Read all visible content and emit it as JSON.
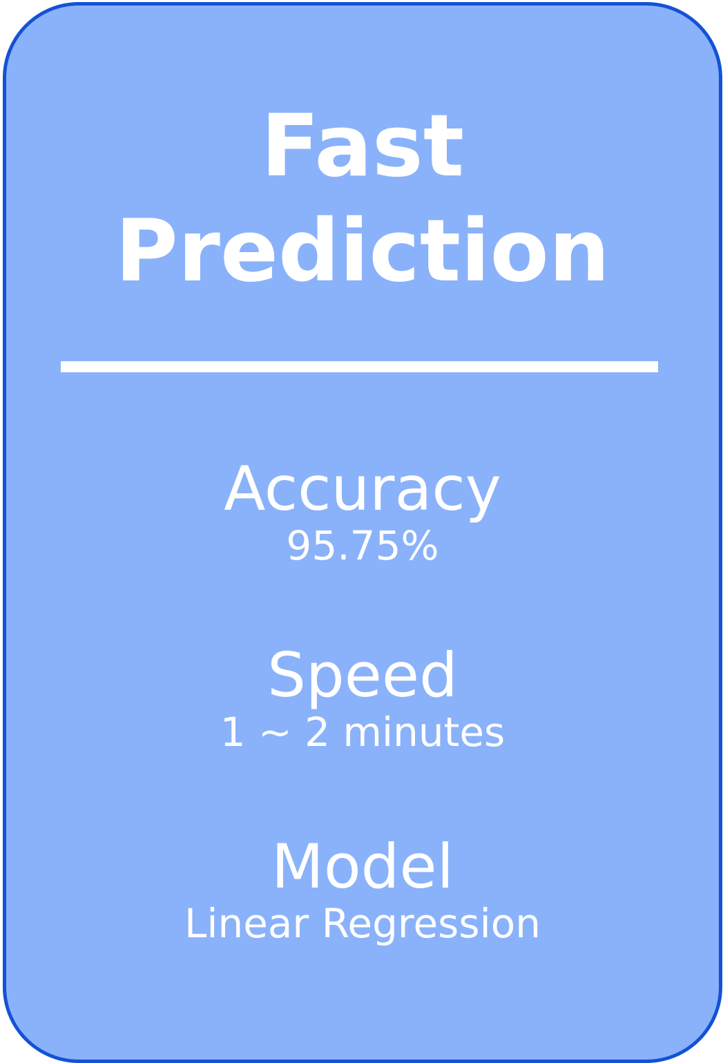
{
  "card": {
    "title_line1": "Fast",
    "title_line2": "Prediction",
    "stats": [
      {
        "label": "Accuracy",
        "value": "95.75%"
      },
      {
        "label": "Speed",
        "value": "1 ~ 2 minutes"
      },
      {
        "label": "Model",
        "value": "Linear Regression"
      }
    ]
  },
  "colors": {
    "card_fill": "#8ab2fa",
    "card_border": "#1352d6",
    "text": "#ffffff"
  }
}
